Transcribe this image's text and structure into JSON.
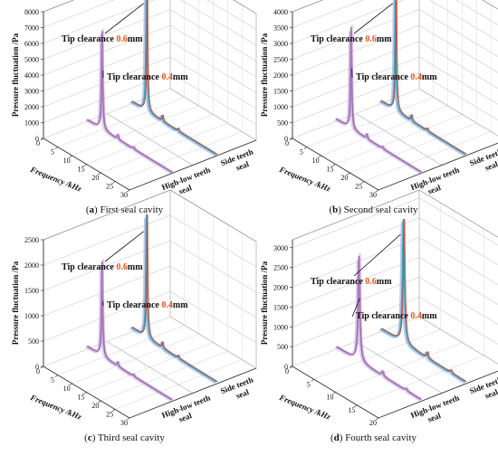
{
  "figure": {
    "panels": [
      {
        "letter": "a",
        "caption": "First seal cavity"
      },
      {
        "letter": "b",
        "caption": "Second seal cavity"
      },
      {
        "letter": "c",
        "caption": "Third seal cavity"
      },
      {
        "letter": "d",
        "caption": "Fourth seal cavity"
      }
    ]
  },
  "colors": {
    "low_series_peak": "#cf7fe8",
    "low_series_body": "#8c6c95",
    "low_series_tail": "#b9a0e0",
    "high_series_peak": "#d9341e",
    "high_series_body": "#2aa7b5",
    "high_series_tail": "#8898e0",
    "annotation_accent": "#e8541f"
  },
  "chart_data": [
    {
      "type": "line3d",
      "panel": "a",
      "xlabel": "Frequency /kHz",
      "ylabel": "Pressure fluctuation /Pa",
      "x_ticks": [
        "0",
        "5",
        "10",
        "15",
        "20",
        "25",
        "30"
      ],
      "y_ticks": [
        "0",
        "1000",
        "2000",
        "3000",
        "4000",
        "5000",
        "6000",
        "7000",
        "8000"
      ],
      "ylim": [
        0,
        8000
      ],
      "xlim": [
        0,
        30
      ],
      "z_categories": [
        "High-low teeth seal",
        "Side teeth seal"
      ],
      "series": [
        {
          "z": "High-low teeth seal",
          "peak_freq": 5.5,
          "peak_value": 6300,
          "baseline": 120
        },
        {
          "z": "Side teeth seal",
          "peak_freq": 5.5,
          "peak_value": 8000,
          "baseline": 150
        }
      ],
      "annotations": [
        {
          "text_prefix": "Tip clearance ",
          "value": "0.6",
          "unit": "mm"
        },
        {
          "text_prefix": "Tip clearance ",
          "value": "0.4",
          "unit": "mm"
        }
      ]
    },
    {
      "type": "line3d",
      "panel": "b",
      "xlabel": "Frequency /kHz",
      "ylabel": "Pressure fluctuation /Pa",
      "x_ticks": [
        "0",
        "5",
        "10",
        "15",
        "20",
        "25",
        "30"
      ],
      "y_ticks": [
        "0",
        "500",
        "1000",
        "1500",
        "2000",
        "2500",
        "3000",
        "3500",
        "4000"
      ],
      "ylim": [
        0,
        4000
      ],
      "xlim": [
        0,
        30
      ],
      "z_categories": [
        "High-low teeth seal",
        "Side teeth seal"
      ],
      "series": [
        {
          "z": "High-low teeth seal",
          "peak_freq": 5.5,
          "peak_value": 3250,
          "baseline": 80
        },
        {
          "z": "Side teeth seal",
          "peak_freq": 5.5,
          "peak_value": 4000,
          "baseline": 90
        }
      ],
      "annotations": [
        {
          "text_prefix": "Tip clearance ",
          "value": "0.6",
          "unit": "mm"
        },
        {
          "text_prefix": "Tip clearance ",
          "value": "0.4",
          "unit": "mm"
        }
      ]
    },
    {
      "type": "line3d",
      "panel": "c",
      "xlabel": "Frequency /kHz",
      "ylabel": "Pressure fluctuation /Pa",
      "x_ticks": [
        "0",
        "5",
        "10",
        "15",
        "20",
        "25",
        "30"
      ],
      "y_ticks": [
        "0",
        "500",
        "1000",
        "1500",
        "2000",
        "2500"
      ],
      "ylim": [
        0,
        2500
      ],
      "xlim": [
        0,
        30
      ],
      "z_categories": [
        "High-low teeth seal",
        "Side teeth seal"
      ],
      "series": [
        {
          "z": "High-low teeth seal",
          "peak_freq": 5.5,
          "peak_value": 1900,
          "baseline": 60
        },
        {
          "z": "Side teeth seal",
          "peak_freq": 5.5,
          "peak_value": 2500,
          "baseline": 80
        }
      ],
      "annotations": [
        {
          "text_prefix": "Tip clearance ",
          "value": "0.6",
          "unit": "mm"
        },
        {
          "text_prefix": "Tip clearance ",
          "value": "0.4",
          "unit": "mm"
        }
      ]
    },
    {
      "type": "line3d",
      "panel": "d",
      "xlabel": "Frequency /kHz",
      "ylabel": "Pressure fluctuation /Pa",
      "x_ticks": [
        "0",
        "5",
        "10",
        "15",
        "20"
      ],
      "y_ticks": [
        "0",
        "500",
        "1000",
        "1500",
        "2000",
        "2500",
        "3000"
      ],
      "ylim": [
        0,
        3200
      ],
      "xlim": [
        0,
        20
      ],
      "z_categories": [
        "High-low teeth seal",
        "Side teeth seal"
      ],
      "series": [
        {
          "z": "High-low teeth seal",
          "peak_freq": 5.5,
          "peak_value": 2700,
          "baseline": 70
        },
        {
          "z": "Side teeth seal",
          "peak_freq": 5.5,
          "peak_value": 3250,
          "baseline": 80
        }
      ],
      "annotations": [
        {
          "text_prefix": "Tip clearance ",
          "value": "0.6",
          "unit": "mm"
        },
        {
          "text_prefix": "Tip clearance ",
          "value": "0.4",
          "unit": "mm"
        }
      ]
    }
  ]
}
